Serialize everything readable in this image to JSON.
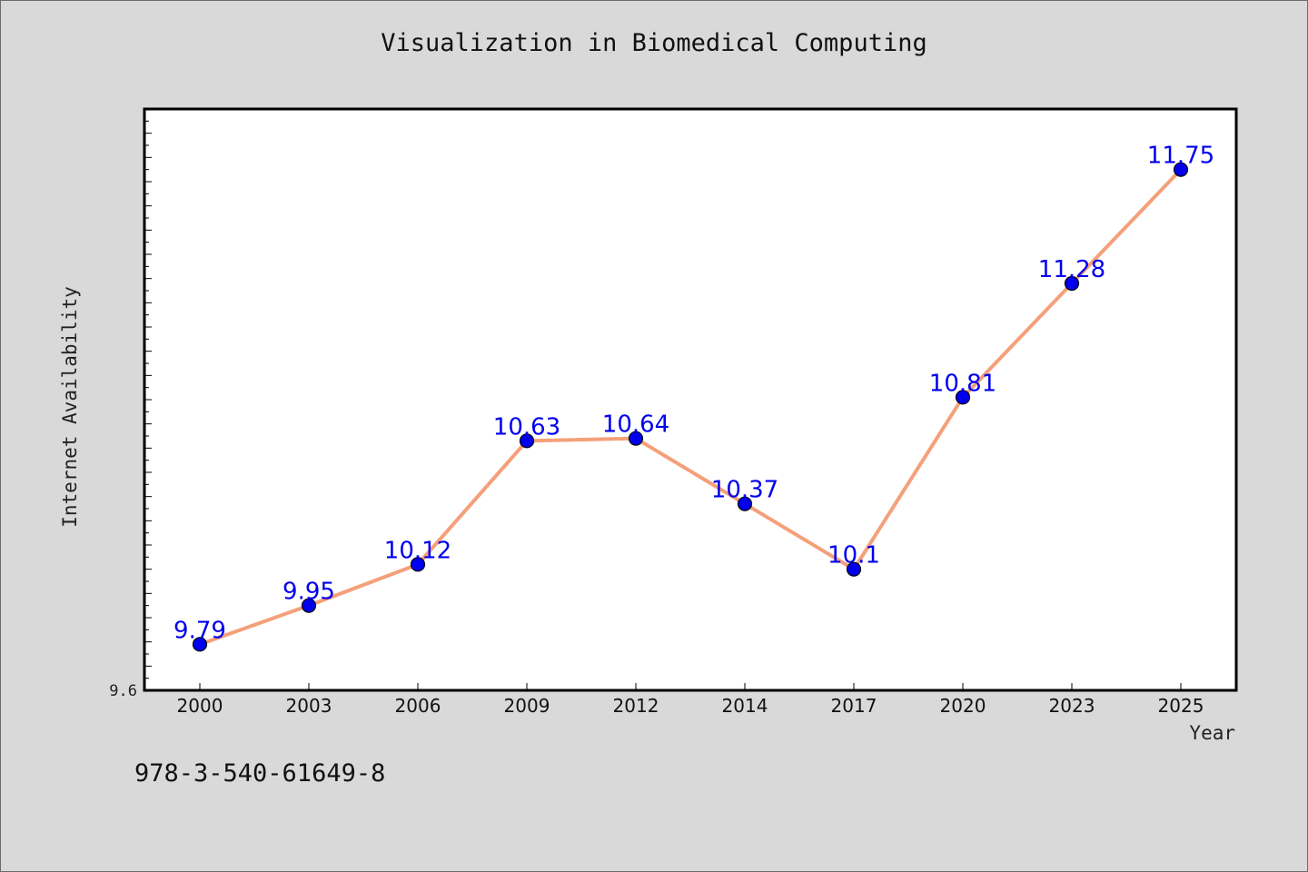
{
  "chart_data": {
    "type": "line",
    "title": "Visualization in Biomedical Computing",
    "xlabel": "Year",
    "ylabel": "Internet Availability",
    "categories": [
      "2000",
      "2003",
      "2006",
      "2009",
      "2012",
      "2014",
      "2017",
      "2020",
      "2023",
      "2025"
    ],
    "series": [
      {
        "values": [
          9.79,
          9.95,
          10.12,
          10.63,
          10.64,
          10.37,
          10.1,
          10.81,
          11.28,
          11.75
        ]
      }
    ],
    "data_labels": [
      "9.79",
      "9.95",
      "10.12",
      "10.63",
      "10.64",
      "10.37",
      "10.1",
      "10.81",
      "11.28",
      "11.75"
    ],
    "ylim": [
      9.6,
      12.0
    ],
    "ytick_labels": [
      "9.6"
    ],
    "line_color": "#f4a07a",
    "marker_color": "#0000ee",
    "label_color": "#0000ee",
    "grid": false
  },
  "footer": {
    "isbn": "978-3-540-61649-8"
  }
}
